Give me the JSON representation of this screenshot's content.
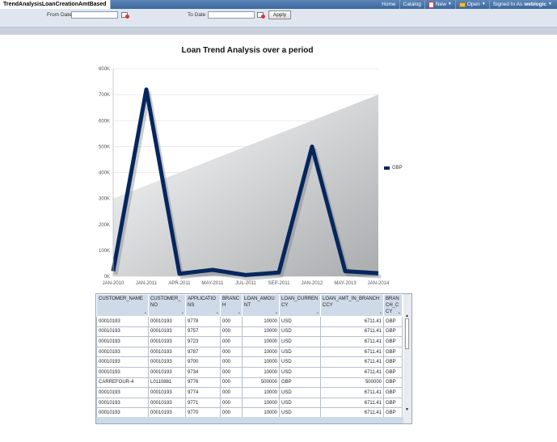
{
  "header": {
    "tab_title": "TrendAnalysisLoanCreationAmtBased",
    "nav": {
      "home": "Home",
      "catalog": "Catalog",
      "new": "New",
      "open": "Open",
      "signed_in_as": "Signed In As",
      "user": "weblogic"
    }
  },
  "prompts": {
    "from_label": "From Date",
    "to_label": "To Date",
    "from_value": "",
    "to_value": "",
    "apply_label": "Apply"
  },
  "chart_data": {
    "type": "area",
    "title": "Loan Trend Analysis over a period",
    "categories": [
      "JAN-2010",
      "JAN-2011",
      "APR-2011",
      "MAY-2011",
      "JUL-2011",
      "SEP-2011",
      "JAN-2012",
      "MAY-2013",
      "JAN-2014"
    ],
    "y_ticks": [
      "0K",
      "100K",
      "200K",
      "300K",
      "400K",
      "500K",
      "600K",
      "700K",
      "800K"
    ],
    "ylim": [
      0,
      800000
    ],
    "series": [
      {
        "name": "GBP",
        "values": [
          20000,
          720000,
          10000,
          25000,
          5000,
          15000,
          500000,
          20000,
          12000
        ]
      }
    ],
    "legend": "right",
    "grid": true,
    "colors": {
      "line": "#06265e"
    }
  },
  "table": {
    "columns": [
      "CUSTOMER_NAME",
      "CUSTOMER_NO",
      "APPLICATIONS",
      "BRANCH",
      "LOAN_AMOUNT",
      "LOAN_CURRENCY",
      "LOAN_AMT_IN_BRANCHCCY",
      "BRANCH_CCY"
    ],
    "rows": [
      [
        "00010193",
        "00010193",
        "9778",
        "000",
        "10000",
        "USD",
        "6711.41",
        "GBP"
      ],
      [
        "00010193",
        "00010193",
        "9757",
        "000",
        "10000",
        "USD",
        "6711.41",
        "GBP"
      ],
      [
        "00010193",
        "00010193",
        "9723",
        "000",
        "10000",
        "USD",
        "6711.41",
        "GBP"
      ],
      [
        "00010193",
        "00010193",
        "9787",
        "000",
        "10000",
        "USD",
        "6711.41",
        "GBP"
      ],
      [
        "00010193",
        "00010193",
        "9700",
        "000",
        "10000",
        "USD",
        "6711.41",
        "GBP"
      ],
      [
        "00010193",
        "00010193",
        "9734",
        "000",
        "10000",
        "USD",
        "6711.41",
        "GBP"
      ],
      [
        "CARREFOUR-4",
        "L0110881",
        "9776",
        "000",
        "500000",
        "GBP",
        "500000",
        "GBP"
      ],
      [
        "00010193",
        "00010193",
        "9774",
        "000",
        "10000",
        "USD",
        "6711.41",
        "GBP"
      ],
      [
        "00010193",
        "00010193",
        "9771",
        "000",
        "10000",
        "USD",
        "6711.41",
        "GBP"
      ],
      [
        "00010193",
        "00010193",
        "9770",
        "000",
        "10000",
        "USD",
        "6711.41",
        "GBP"
      ]
    ]
  }
}
